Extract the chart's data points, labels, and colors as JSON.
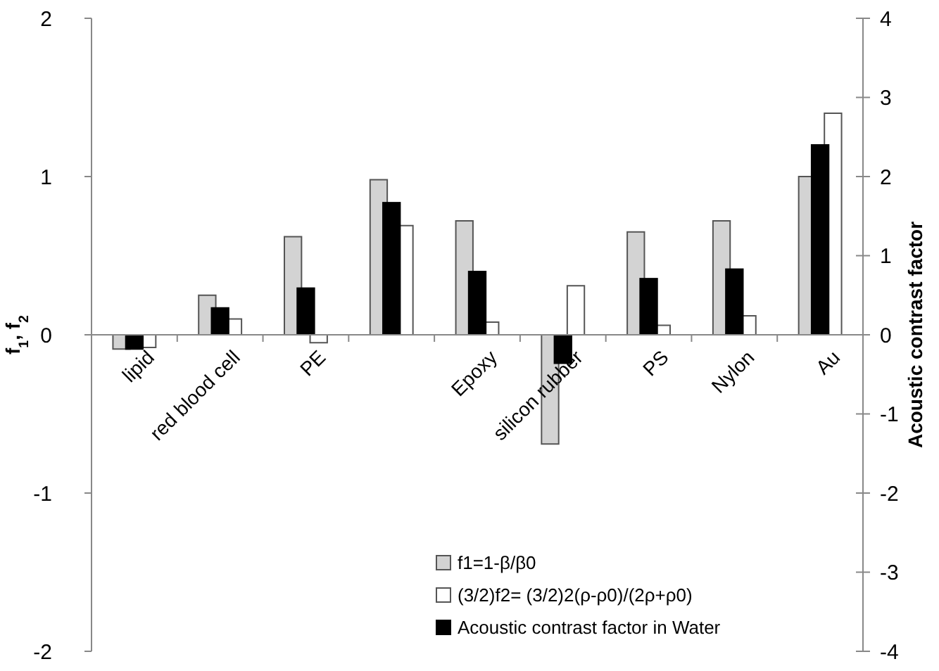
{
  "chart_data": {
    "type": "bar",
    "ylabel": "f$_{1}$, f$_{2}$",
    "y2label": "Acoustic contrast factor",
    "categories": [
      "lipid",
      "red blood cell",
      "PE",
      null,
      "Epoxy",
      "silicon rubber",
      "PS",
      "Nylon",
      "Au"
    ],
    "series": [
      {
        "name": "f1=1-β/β0",
        "color": "#d3d3d3",
        "values": [
          -0.09,
          0.25,
          0.62,
          0.98,
          0.72,
          -0.69,
          0.65,
          0.72,
          1.0
        ]
      },
      {
        "name": "(3/2)f2= (3/2)2(ρ-ρ0)/(2ρ+ρ0)",
        "color": "#ffffff",
        "values": [
          -0.08,
          0.1,
          -0.05,
          0.69,
          0.08,
          0.31,
          0.06,
          0.12,
          1.4
        ]
      },
      {
        "name": "Acoustic contrast factor in Water",
        "color": "#000000",
        "axis": "y2",
        "values": [
          -0.18,
          0.34,
          0.59,
          1.67,
          0.8,
          -0.36,
          0.71,
          0.83,
          2.4
        ]
      }
    ],
    "ylim": [
      -2,
      2
    ],
    "yticks": [
      -2,
      -1,
      0,
      1,
      2
    ],
    "y2lim": [
      -4,
      4
    ],
    "y2ticks": [
      -4,
      -3,
      -2,
      -1,
      0,
      1,
      2,
      3,
      4
    ],
    "grid": false,
    "legend": "bottom"
  }
}
